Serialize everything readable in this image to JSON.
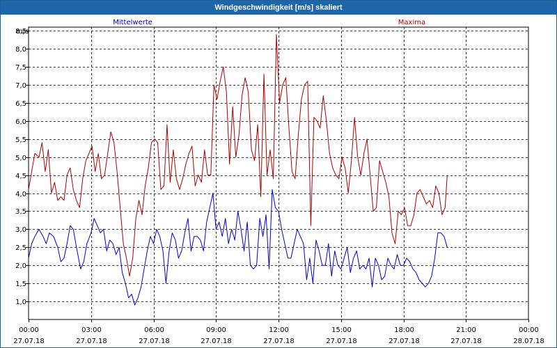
{
  "window": {
    "title": "Windgeschwindigkeit [m/s] skaliert"
  },
  "chart_data": {
    "type": "line",
    "title": "Windgeschwindigkeit [m/s] skaliert",
    "ylabel": "m/s",
    "xlabel": "",
    "ylim": [
      0.5,
      8.6
    ],
    "y_ticks": [
      "1,0",
      "1,5",
      "2,0",
      "2,5",
      "3,0",
      "3,5",
      "4,0",
      "4,5",
      "5,0",
      "5,5",
      "6,0",
      "6,5",
      "7,0",
      "7,5",
      "8,0",
      "8,5"
    ],
    "y_tick_values": [
      1.0,
      1.5,
      2.0,
      2.5,
      3.0,
      3.5,
      4.0,
      4.5,
      5.0,
      5.5,
      6.0,
      6.5,
      7.0,
      7.5,
      8.0,
      8.5
    ],
    "x_tick_hours": [
      0,
      3,
      6,
      9,
      12,
      15,
      18,
      21,
      24
    ],
    "x_tick_times": [
      "00:00",
      "03:00",
      "06:00",
      "09:00",
      "12:00",
      "15:00",
      "18:00",
      "21:00",
      "00:00"
    ],
    "x_tick_dates": [
      "27.07.18",
      "27.07.18",
      "27.07.18",
      "27.07.18",
      "27.07.18",
      "27.07.18",
      "27.07.18",
      "27.07.18",
      "28.07.18"
    ],
    "grid": true,
    "legend": "top",
    "series": [
      {
        "name": "Mittelwerte",
        "color": "#0000cc",
        "points": [
          [
            0.0,
            2.2
          ],
          [
            0.15,
            2.6
          ],
          [
            0.3,
            2.8
          ],
          [
            0.5,
            3.0
          ],
          [
            0.7,
            2.8
          ],
          [
            0.85,
            2.6
          ],
          [
            1.0,
            2.9
          ],
          [
            1.2,
            2.8
          ],
          [
            1.4,
            2.5
          ],
          [
            1.55,
            2.1
          ],
          [
            1.7,
            2.2
          ],
          [
            1.85,
            2.6
          ],
          [
            2.0,
            3.1
          ],
          [
            2.15,
            3.0
          ],
          [
            2.3,
            2.5
          ],
          [
            2.5,
            1.9
          ],
          [
            2.65,
            2.1
          ],
          [
            2.8,
            2.6
          ],
          [
            3.0,
            2.9
          ],
          [
            3.15,
            3.3
          ],
          [
            3.3,
            3.1
          ],
          [
            3.45,
            2.9
          ],
          [
            3.6,
            3.0
          ],
          [
            3.75,
            2.4
          ],
          [
            3.9,
            2.7
          ],
          [
            4.05,
            2.6
          ],
          [
            4.2,
            2.3
          ],
          [
            4.35,
            2.5
          ],
          [
            4.5,
            1.8
          ],
          [
            4.65,
            1.5
          ],
          [
            4.8,
            1.1
          ],
          [
            4.95,
            1.2
          ],
          [
            5.1,
            0.9
          ],
          [
            5.25,
            1.1
          ],
          [
            5.4,
            1.4
          ],
          [
            5.55,
            1.9
          ],
          [
            5.7,
            2.4
          ],
          [
            5.85,
            2.8
          ],
          [
            6.0,
            2.6
          ],
          [
            6.15,
            3.0
          ],
          [
            6.3,
            2.8
          ],
          [
            6.45,
            2.4
          ],
          [
            6.6,
            1.5
          ],
          [
            6.75,
            2.4
          ],
          [
            6.9,
            2.9
          ],
          [
            7.05,
            2.7
          ],
          [
            7.2,
            2.2
          ],
          [
            7.35,
            2.4
          ],
          [
            7.5,
            2.9
          ],
          [
            7.65,
            3.3
          ],
          [
            7.8,
            2.4
          ],
          [
            7.95,
            2.8
          ],
          [
            8.1,
            2.8
          ],
          [
            8.25,
            2.7
          ],
          [
            8.4,
            2.4
          ],
          [
            8.55,
            3.2
          ],
          [
            8.7,
            3.6
          ],
          [
            8.85,
            4.0
          ],
          [
            9.0,
            3.0
          ],
          [
            9.15,
            3.2
          ],
          [
            9.3,
            2.8
          ],
          [
            9.45,
            3.3
          ],
          [
            9.6,
            2.6
          ],
          [
            9.75,
            3.0
          ],
          [
            9.9,
            2.7
          ],
          [
            10.05,
            3.5
          ],
          [
            10.2,
            3.0
          ],
          [
            10.35,
            2.4
          ],
          [
            10.5,
            3.2
          ],
          [
            10.65,
            2.0
          ],
          [
            10.8,
            1.9
          ],
          [
            10.95,
            2.0
          ],
          [
            11.1,
            3.3
          ],
          [
            11.25,
            2.8
          ],
          [
            11.4,
            3.4
          ],
          [
            11.55,
            1.9
          ],
          [
            11.7,
            4.1
          ],
          [
            11.85,
            3.6
          ],
          [
            12.0,
            3.5
          ],
          [
            12.15,
            3.0
          ],
          [
            12.3,
            2.6
          ],
          [
            12.45,
            2.2
          ],
          [
            12.6,
            2.2
          ],
          [
            12.75,
            2.6
          ],
          [
            12.9,
            3.0
          ],
          [
            13.05,
            2.8
          ],
          [
            13.2,
            2.6
          ],
          [
            13.35,
            1.6
          ],
          [
            13.5,
            2.2
          ],
          [
            13.65,
            1.5
          ],
          [
            13.8,
            2.7
          ],
          [
            13.95,
            2.4
          ],
          [
            14.1,
            2.0
          ],
          [
            14.25,
            2.0
          ],
          [
            14.4,
            2.6
          ],
          [
            14.55,
            1.7
          ],
          [
            14.7,
            2.4
          ],
          [
            14.85,
            2.0
          ],
          [
            15.0,
            1.9
          ],
          [
            15.15,
            2.2
          ],
          [
            15.3,
            2.5
          ],
          [
            15.45,
            1.8
          ],
          [
            15.6,
            2.2
          ],
          [
            15.75,
            2.4
          ],
          [
            15.9,
            1.9
          ],
          [
            16.05,
            2.0
          ],
          [
            16.2,
            1.9
          ],
          [
            16.35,
            2.2
          ],
          [
            16.5,
            1.4
          ],
          [
            16.65,
            2.2
          ],
          [
            16.8,
            2.0
          ],
          [
            16.95,
            1.6
          ],
          [
            17.1,
            1.7
          ],
          [
            17.25,
            2.2
          ],
          [
            17.4,
            2.0
          ],
          [
            17.55,
            1.9
          ],
          [
            17.7,
            2.3
          ],
          [
            17.85,
            2.0
          ],
          [
            18.0,
            2.0
          ],
          [
            18.15,
            2.2
          ],
          [
            18.3,
            2.1
          ],
          [
            18.45,
            1.9
          ],
          [
            18.6,
            1.8
          ],
          [
            18.75,
            1.6
          ],
          [
            18.9,
            1.5
          ],
          [
            19.05,
            1.4
          ],
          [
            19.2,
            1.5
          ],
          [
            19.35,
            1.7
          ],
          [
            19.5,
            2.2
          ],
          [
            19.65,
            2.9
          ],
          [
            19.8,
            2.9
          ],
          [
            19.95,
            2.8
          ],
          [
            20.1,
            2.5
          ]
        ]
      },
      {
        "name": "Maxima",
        "color": "#aa0000",
        "points": [
          [
            0.0,
            4.1
          ],
          [
            0.15,
            4.6
          ],
          [
            0.3,
            5.1
          ],
          [
            0.5,
            5.0
          ],
          [
            0.65,
            5.4
          ],
          [
            0.8,
            4.6
          ],
          [
            0.95,
            5.2
          ],
          [
            1.1,
            4.0
          ],
          [
            1.25,
            4.3
          ],
          [
            1.4,
            3.8
          ],
          [
            1.55,
            3.9
          ],
          [
            1.7,
            3.8
          ],
          [
            1.85,
            4.5
          ],
          [
            2.0,
            4.7
          ],
          [
            2.15,
            4.1
          ],
          [
            2.3,
            3.8
          ],
          [
            2.45,
            3.6
          ],
          [
            2.6,
            4.4
          ],
          [
            2.75,
            4.9
          ],
          [
            2.9,
            5.1
          ],
          [
            3.05,
            5.3
          ],
          [
            3.2,
            4.6
          ],
          [
            3.35,
            5.1
          ],
          [
            3.5,
            4.4
          ],
          [
            3.65,
            4.5
          ],
          [
            3.8,
            5.1
          ],
          [
            3.95,
            5.7
          ],
          [
            4.1,
            5.4
          ],
          [
            4.25,
            4.6
          ],
          [
            4.4,
            3.6
          ],
          [
            4.55,
            2.6
          ],
          [
            4.7,
            2.2
          ],
          [
            4.85,
            1.7
          ],
          [
            5.0,
            2.2
          ],
          [
            5.15,
            3.3
          ],
          [
            5.3,
            3.8
          ],
          [
            5.45,
            3.4
          ],
          [
            5.6,
            4.2
          ],
          [
            5.75,
            4.7
          ],
          [
            5.9,
            5.4
          ],
          [
            6.05,
            5.5
          ],
          [
            6.2,
            5.4
          ],
          [
            6.35,
            4.1
          ],
          [
            6.5,
            4.2
          ],
          [
            6.65,
            5.9
          ],
          [
            6.8,
            4.3
          ],
          [
            6.95,
            5.2
          ],
          [
            7.1,
            4.4
          ],
          [
            7.25,
            4.1
          ],
          [
            7.4,
            4.4
          ],
          [
            7.55,
            4.8
          ],
          [
            7.7,
            5.1
          ],
          [
            7.85,
            5.3
          ],
          [
            8.0,
            4.2
          ],
          [
            8.15,
            4.5
          ],
          [
            8.3,
            4.3
          ],
          [
            8.45,
            5.2
          ],
          [
            8.6,
            4.5
          ],
          [
            8.75,
            4.5
          ],
          [
            8.9,
            7.0
          ],
          [
            9.05,
            6.6
          ],
          [
            9.2,
            7.1
          ],
          [
            9.35,
            7.5
          ],
          [
            9.5,
            6.8
          ],
          [
            9.65,
            4.8
          ],
          [
            9.8,
            6.4
          ],
          [
            9.95,
            5.0
          ],
          [
            10.1,
            5.6
          ],
          [
            10.25,
            6.7
          ],
          [
            10.4,
            7.2
          ],
          [
            10.55,
            6.8
          ],
          [
            10.7,
            5.2
          ],
          [
            10.85,
            4.9
          ],
          [
            11.0,
            5.9
          ],
          [
            11.15,
            3.9
          ],
          [
            11.3,
            7.3
          ],
          [
            11.45,
            4.5
          ],
          [
            11.6,
            5.2
          ],
          [
            11.75,
            4.4
          ],
          [
            11.9,
            8.4
          ],
          [
            12.05,
            6.5
          ],
          [
            12.2,
            7.0
          ],
          [
            12.35,
            7.2
          ],
          [
            12.5,
            5.8
          ],
          [
            12.65,
            4.6
          ],
          [
            12.8,
            4.4
          ],
          [
            12.95,
            5.6
          ],
          [
            13.1,
            6.6
          ],
          [
            13.25,
            7.0
          ],
          [
            13.4,
            7.1
          ],
          [
            13.55,
            3.1
          ],
          [
            13.7,
            6.1
          ],
          [
            13.85,
            6.0
          ],
          [
            14.0,
            5.8
          ],
          [
            14.15,
            6.7
          ],
          [
            14.3,
            6.0
          ],
          [
            14.45,
            5.1
          ],
          [
            14.6,
            4.7
          ],
          [
            14.75,
            4.5
          ],
          [
            14.9,
            4.4
          ],
          [
            15.05,
            5.0
          ],
          [
            15.2,
            4.7
          ],
          [
            15.35,
            4.0
          ],
          [
            15.5,
            4.9
          ],
          [
            15.65,
            6.1
          ],
          [
            15.8,
            5.0
          ],
          [
            15.95,
            4.5
          ],
          [
            16.1,
            5.1
          ],
          [
            16.25,
            5.5
          ],
          [
            16.4,
            4.5
          ],
          [
            16.55,
            3.5
          ],
          [
            16.7,
            3.6
          ],
          [
            16.85,
            4.9
          ],
          [
            17.0,
            4.6
          ],
          [
            17.15,
            4.3
          ],
          [
            17.3,
            3.9
          ],
          [
            17.45,
            2.9
          ],
          [
            17.6,
            2.6
          ],
          [
            17.75,
            3.5
          ],
          [
            17.9,
            3.4
          ],
          [
            18.05,
            3.6
          ],
          [
            18.2,
            3.1
          ],
          [
            18.35,
            3.1
          ],
          [
            18.5,
            3.4
          ],
          [
            18.65,
            4.0
          ],
          [
            18.8,
            4.1
          ],
          [
            18.95,
            3.9
          ],
          [
            19.1,
            3.7
          ],
          [
            19.25,
            3.8
          ],
          [
            19.4,
            3.6
          ],
          [
            19.55,
            4.2
          ],
          [
            19.7,
            4.0
          ],
          [
            19.85,
            3.4
          ],
          [
            20.0,
            3.6
          ],
          [
            20.1,
            4.5
          ]
        ]
      }
    ]
  }
}
